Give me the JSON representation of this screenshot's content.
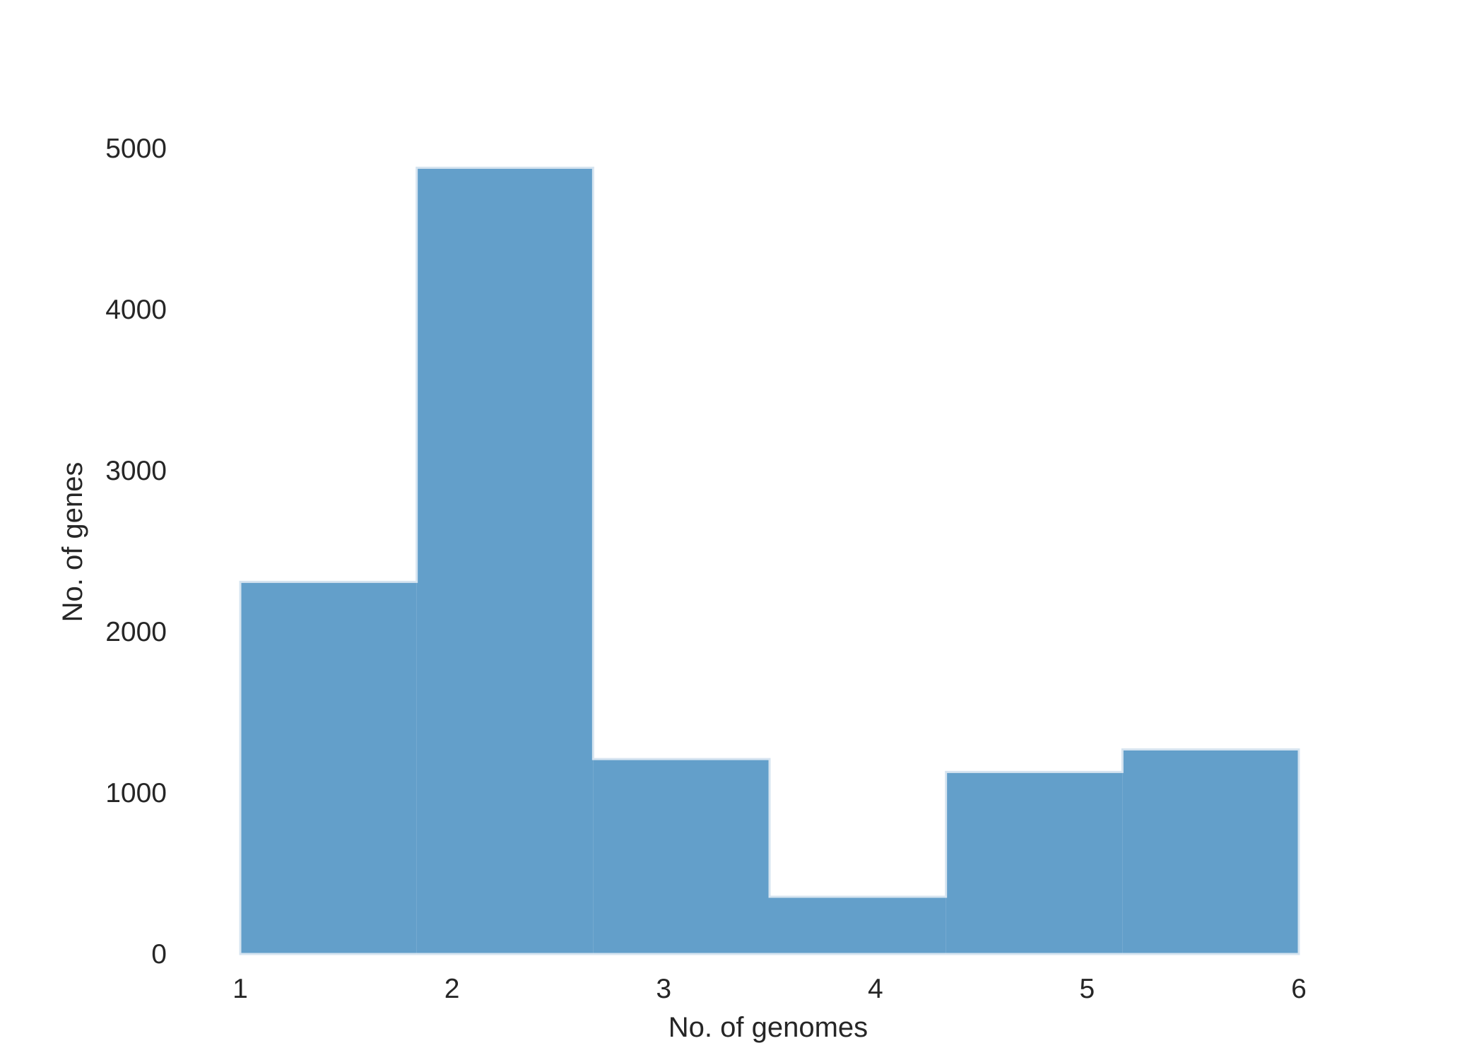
{
  "chart_data": {
    "type": "bar",
    "title": "",
    "xlabel": "No. of genomes",
    "ylabel": "No. of genes",
    "x_ticks": [
      1,
      2,
      3,
      4,
      5,
      6
    ],
    "y_ticks": [
      0,
      1000,
      2000,
      3000,
      4000,
      5000
    ],
    "xlim": [
      1,
      6
    ],
    "ylim": [
      0,
      5000
    ],
    "grid": false,
    "bins": [
      {
        "start": 1.0,
        "end": 1.8333,
        "value": 2310
      },
      {
        "start": 1.8333,
        "end": 2.6667,
        "value": 4880
      },
      {
        "start": 2.6667,
        "end": 3.5,
        "value": 1210
      },
      {
        "start": 3.5,
        "end": 4.3333,
        "value": 355
      },
      {
        "start": 4.3333,
        "end": 5.1667,
        "value": 1130
      },
      {
        "start": 5.1667,
        "end": 6.0,
        "value": 1270
      }
    ],
    "bar_color": "#639FCA",
    "edge_color": "#D6E4F0"
  }
}
